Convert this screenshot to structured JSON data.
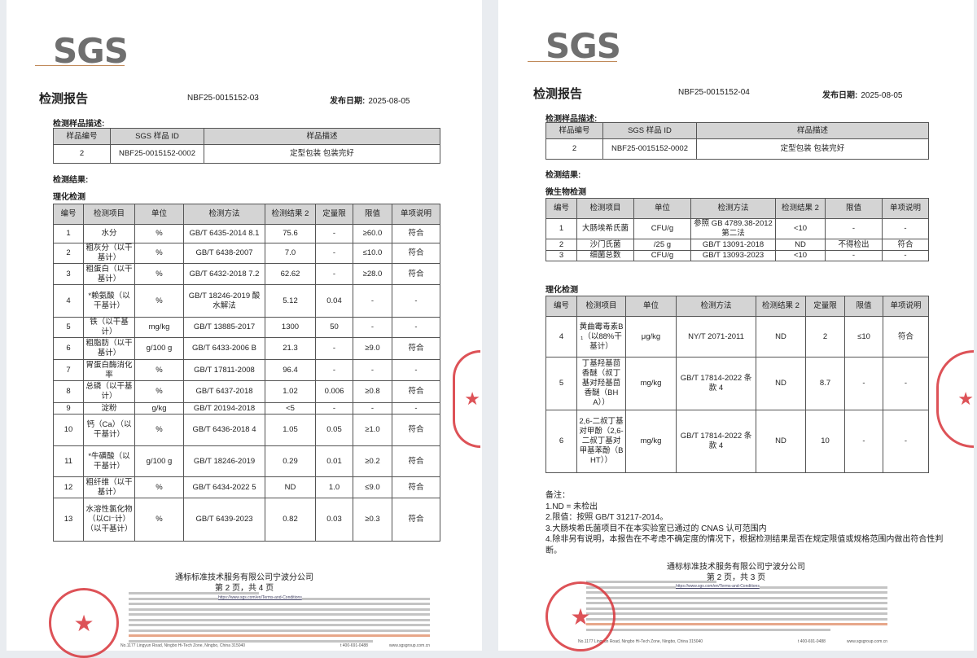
{
  "pages": [
    {
      "logo": "SGS",
      "title": "检测报告",
      "report_no": "NBF25-0015152-03",
      "date_label": "发布日期:",
      "date": "2025-08-05",
      "sample_section": "检测样品描述:",
      "sample_headers": [
        "样品编号",
        "SGS 样品 ID",
        "样品描述"
      ],
      "sample_row": [
        "2",
        "NBF25-0015152-0002",
        "定型包装 包装完好"
      ],
      "results_label": "检测结果:",
      "tables": [
        {
          "section": "理化检测",
          "headers": [
            "编号",
            "检测项目",
            "单位",
            "检测方法",
            "检测结果 2",
            "定量限",
            "限值",
            "单项说明"
          ],
          "rows": [
            [
              "1",
              "水分",
              "%",
              "GB/T 6435-2014 8.1",
              "75.6",
              "-",
              "≥60.0",
              "符合"
            ],
            [
              "2",
              "粗灰分（以干基计）",
              "%",
              "GB/T 6438-2007",
              "7.0",
              "-",
              "≤10.0",
              "符合"
            ],
            [
              "3",
              "粗蛋白（以干基计）",
              "%",
              "GB/T 6432-2018 7.2",
              "62.62",
              "-",
              "≥28.0",
              "符合"
            ],
            [
              "4",
              "*赖氨酸（以干基计）",
              "%",
              "GB/T 18246-2019 酸水解法",
              "5.12",
              "0.04",
              "-",
              "-"
            ],
            [
              "5",
              "铁（以干基计）",
              "mg/kg",
              "GB/T 13885-2017",
              "1300",
              "50",
              "-",
              "-"
            ],
            [
              "6",
              "粗脂肪（以干基计）",
              "g/100 g",
              "GB/T 6433-2006 B",
              "21.3",
              "-",
              "≥9.0",
              "符合"
            ],
            [
              "7",
              "胃蛋白酶消化率",
              "%",
              "GB/T 17811-2008",
              "96.4",
              "-",
              "-",
              "-"
            ],
            [
              "8",
              "总磷（以干基计）",
              "%",
              "GB/T 6437-2018",
              "1.02",
              "0.006",
              "≥0.8",
              "符合"
            ],
            [
              "9",
              "淀粉",
              "g/kg",
              "GB/T 20194-2018",
              "<5",
              "-",
              "-",
              "-"
            ],
            [
              "10",
              "钙（Ca）（以干基计）",
              "%",
              "GB/T 6436-2018 4",
              "1.05",
              "0.05",
              "≥1.0",
              "符合"
            ],
            [
              "11",
              "*牛磺酸（以干基计）",
              "g/100 g",
              "GB/T 18246-2019",
              "0.29",
              "0.01",
              "≥0.2",
              "符合"
            ],
            [
              "12",
              "粗纤维（以干基计）",
              "%",
              "GB/T 6434-2022 5",
              "ND",
              "1.0",
              "≤9.0",
              "符合"
            ],
            [
              "13",
              "水溶性氯化物（以Cl⁻计）（以干基计）",
              "%",
              "GB/T 6439-2023",
              "0.82",
              "0.03",
              "≥0.3",
              "符合"
            ]
          ]
        }
      ],
      "notes": [],
      "company": "通标标准技术服务有限公司宁波分公司",
      "page_info": "第 2 页，共 4 页",
      "terms_link": "https://www.sgs.com/en/Terms-and-Conditions",
      "address": "No.1177 Lingyun Road, Ningbo Hi-Tech Zone, Ningbo, China 315040",
      "phone": "t 400-691-0488",
      "website": "www.sgsgroup.com.cn"
    },
    {
      "logo": "SGS",
      "title": "检测报告",
      "report_no": "NBF25-0015152-04",
      "date_label": "发布日期:",
      "date": "2025-08-05",
      "sample_section": "检测样品描述:",
      "sample_headers": [
        "样品编号",
        "SGS 样品 ID",
        "样品描述"
      ],
      "sample_row": [
        "2",
        "NBF25-0015152-0002",
        "定型包装 包装完好"
      ],
      "results_label": "检测结果:",
      "tables": [
        {
          "section": "微生物检测",
          "headers": [
            "编号",
            "检测项目",
            "单位",
            "检测方法",
            "检测结果 2",
            "限值",
            "单项说明"
          ],
          "rows": [
            [
              "1",
              "大肠埃希氏菌",
              "CFU/g",
              "参照 GB 4789.38-2012 第二法",
              "<10",
              "-",
              "-"
            ],
            [
              "2",
              "沙门氏菌",
              "/25 g",
              "GB/T 13091-2018",
              "ND",
              "不得检出",
              "符合"
            ],
            [
              "3",
              "细菌总数",
              "CFU/g",
              "GB/T 13093-2023",
              "<10",
              "-",
              "-"
            ]
          ]
        },
        {
          "section": "理化检测",
          "headers": [
            "编号",
            "检测项目",
            "单位",
            "检测方法",
            "检测结果 2",
            "定量限",
            "限值",
            "单项说明"
          ],
          "rows": [
            [
              "4",
              "黄曲霉毒素B₁（以88%干基计）",
              "μg/kg",
              "NY/T 2071-2011",
              "ND",
              "2",
              "≤10",
              "符合"
            ],
            [
              "5",
              "丁基羟基茴香醚（叔丁基对羟基茴香醚（BHA））",
              "mg/kg",
              "GB/T 17814-2022 条款 4",
              "ND",
              "8.7",
              "-",
              "-"
            ],
            [
              "6",
              "2,6-二叔丁基对甲酚（2,6-二叔丁基对甲基苯酚（BHT））",
              "mg/kg",
              "GB/T 17814-2022 条款 4",
              "ND",
              "10",
              "-",
              "-"
            ]
          ]
        }
      ],
      "notes": [
        "备注：",
        "1.ND = 未检出",
        "2.限值：按照 GB/T 31217-2014。",
        "3.大肠埃希氏菌项目不在本实验室已通过的 CNAS 认可范围内",
        "4.除非另有说明，本报告在不考虑不确定度的情况下，根据检测结果是否在规定限值或规格范围内做出符合性判断。"
      ],
      "company": "通标标准技术服务有限公司宁波分公司",
      "page_info": "第 2 页，共 3 页",
      "terms_link": "https://www.sgs.com/en/Terms-and-Conditions",
      "address": "No.1177 Lingyun Road, Ningbo Hi-Tech Zone, Ningbo, China 315040",
      "phone": "t 400-691-0488",
      "website": "www.sgsgroup.com.cn"
    }
  ],
  "colors": {
    "stamp": "#d8343a",
    "table_header": "#d4d4d4",
    "logo": "#6f6f6f"
  }
}
